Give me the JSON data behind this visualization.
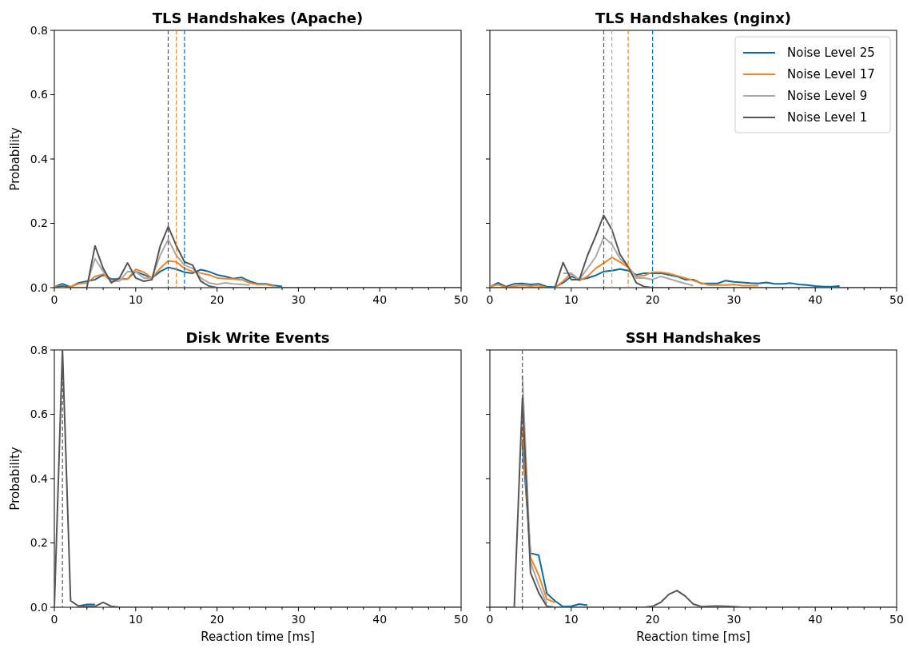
{
  "chart_data": [
    {
      "type": "line",
      "title": "TLS Handshakes (Apache)",
      "ylabel": "Probability",
      "x": [
        0,
        1,
        2,
        3,
        4,
        5,
        6,
        7,
        8,
        9,
        10,
        11,
        12,
        13,
        14,
        15,
        16,
        17,
        18,
        19,
        20,
        21,
        22,
        23,
        24,
        25,
        26,
        27,
        28,
        29,
        30,
        31,
        32,
        33,
        34,
        35,
        36,
        37,
        38,
        39,
        40,
        41,
        42,
        43,
        44,
        45,
        46,
        47,
        48,
        49,
        50
      ],
      "series": [
        {
          "color": "#0a6aa6",
          "values": [
            0.003,
            0.012,
            0.002,
            0.015,
            0.02,
            0.025,
            0.04,
            0.027,
            0.027,
            0.027,
            0.05,
            0.04,
            0.03,
            0.05,
            0.063,
            0.057,
            0.048,
            0.045,
            0.056,
            0.05,
            0.04,
            0.035,
            0.028,
            0.032,
            0.02,
            0.012,
            0.012,
            0.007,
            0.004,
            null,
            null,
            null,
            null,
            null,
            null,
            null,
            null,
            null,
            null,
            null,
            null,
            null,
            null,
            null,
            null,
            null,
            null,
            null,
            null,
            null,
            null
          ]
        },
        {
          "color": "#f58220",
          "values": [
            0.005,
            0.003,
            0.003,
            0.012,
            0.015,
            0.035,
            0.042,
            0.02,
            0.027,
            0.027,
            0.057,
            0.048,
            0.03,
            0.06,
            0.083,
            0.08,
            0.06,
            0.05,
            0.045,
            0.04,
            0.03,
            0.028,
            0.027,
            0.025,
            0.015,
            0.01,
            0.01,
            0.005,
            null,
            null,
            null,
            null,
            null,
            null,
            null,
            null,
            null,
            null,
            null,
            null,
            null,
            null,
            null,
            null,
            null,
            null,
            null,
            null,
            null,
            null,
            null
          ]
        },
        {
          "color": "#aaaaaa",
          "values": [
            null,
            null,
            null,
            null,
            0.01,
            0.09,
            0.05,
            0.02,
            0.02,
            0.05,
            0.05,
            0.03,
            0.03,
            0.1,
            0.15,
            0.1,
            0.07,
            0.06,
            0.03,
            0.015,
            0.01,
            0.015,
            0.012,
            0.01,
            0.008,
            null,
            null,
            null,
            null,
            null,
            null,
            null,
            null,
            null,
            null,
            null,
            null,
            null,
            null,
            null,
            null,
            null,
            null,
            null,
            null,
            null,
            null,
            null,
            null,
            null,
            null
          ]
        },
        {
          "color": "#555555",
          "values": [
            0,
            0.005,
            0,
            0,
            0,
            0.13,
            0.06,
            0.015,
            0.03,
            0.077,
            0.03,
            0.02,
            0.025,
            0.128,
            0.19,
            0.13,
            0.08,
            0.07,
            0.02,
            0.005,
            0,
            0,
            0,
            0,
            0,
            0,
            0,
            0,
            0,
            0,
            0,
            0,
            0,
            0,
            0,
            0,
            0,
            0,
            0,
            0,
            0,
            0,
            0,
            0,
            0,
            0,
            0,
            0,
            0,
            0,
            0
          ]
        }
      ],
      "xlim": [
        0,
        50
      ],
      "ylim": [
        0,
        0.8
      ],
      "xticks": [
        0,
        {
          "value": 2,
          "label": null
        },
        {
          "value": 4,
          "label": null
        },
        {
          "value": 6,
          "label": null
        },
        {
          "value": 8,
          "label": null
        },
        10,
        {
          "value": 12,
          "label": null
        },
        {
          "value": 14,
          "label": null
        },
        {
          "value": 16,
          "label": null
        },
        {
          "value": 18,
          "label": null
        },
        20,
        {
          "value": 22,
          "label": null
        },
        {
          "value": 24,
          "label": null
        },
        {
          "value": 26,
          "label": null
        },
        {
          "value": 28,
          "label": null
        },
        30,
        {
          "value": 32,
          "label": null
        },
        {
          "value": 34,
          "label": null
        },
        {
          "value": 36,
          "label": null
        },
        {
          "value": 38,
          "label": null
        },
        40,
        {
          "value": 42,
          "label": null
        },
        {
          "value": 44,
          "label": null
        },
        {
          "value": 46,
          "label": null
        },
        {
          "value": 48,
          "label": null
        },
        50
      ],
      "yticks": [
        {
          "value": 0,
          "label": "0.0"
        },
        0.2,
        0.4,
        0.6,
        0.8
      ],
      "ref_lines": [
        {
          "axis": "x",
          "value": 14,
          "color": "#555555",
          "line_style": "dashed"
        },
        {
          "axis": "x",
          "value": 15,
          "color": "#f58220",
          "line_style": "dashed"
        },
        {
          "axis": "x",
          "value": 16,
          "color": "#0a6aa6",
          "line_style": "dashed"
        }
      ]
    },
    {
      "type": "line",
      "title": "TLS Handshakes (nginx)",
      "x": [
        0,
        1,
        2,
        3,
        4,
        5,
        6,
        7,
        8,
        9,
        10,
        11,
        12,
        13,
        14,
        15,
        16,
        17,
        18,
        19,
        20,
        21,
        22,
        23,
        24,
        25,
        26,
        27,
        28,
        29,
        30,
        31,
        32,
        33,
        34,
        35,
        36,
        37,
        38,
        39,
        40,
        41,
        42,
        43,
        44,
        45,
        46,
        47,
        48,
        49,
        50
      ],
      "series": [
        {
          "name": "Noise Level 25",
          "color": "#0a6aa6",
          "values": [
            0.002,
            0.015,
            0.003,
            0.012,
            0.013,
            0.01,
            0.012,
            0.003,
            0.002,
            0.015,
            0.035,
            0.025,
            0.03,
            0.038,
            0.05,
            0.053,
            0.058,
            0.053,
            0.04,
            0.045,
            0.045,
            0.045,
            0.04,
            0.035,
            0.025,
            0.025,
            0.013,
            0.013,
            0.013,
            0.022,
            0.018,
            0.016,
            0.014,
            0.013,
            0.016,
            0.012,
            0.012,
            0.014,
            0.01,
            0.008,
            0.005,
            0.003,
            0.003,
            0.005,
            null,
            null,
            null,
            null,
            null,
            null,
            null
          ]
        },
        {
          "name": "Noise Level 17",
          "color": "#f58220",
          "values": [
            0.003,
            0.01,
            0,
            0.005,
            0.007,
            0.005,
            0.007,
            0,
            0,
            0.02,
            0.045,
            0.022,
            0.035,
            0.06,
            0.076,
            0.094,
            0.08,
            0.063,
            0.035,
            0.038,
            0.048,
            0.048,
            0.044,
            0.037,
            0.03,
            0.022,
            0.014,
            0.008,
            0.008,
            0.008,
            0.01,
            0.006,
            0.006,
            0.006,
            null,
            null,
            null,
            null,
            null,
            null,
            null,
            null,
            null,
            null,
            null,
            null,
            null,
            null,
            null,
            null,
            null
          ]
        },
        {
          "name": "Noise Level 9",
          "color": "#aaaaaa",
          "values": [
            null,
            null,
            null,
            null,
            null,
            null,
            null,
            null,
            null,
            0.045,
            0.045,
            0.025,
            0.06,
            0.095,
            0.157,
            0.135,
            0.09,
            0.065,
            0.03,
            0.03,
            0.025,
            0.035,
            0.028,
            0.02,
            0.013,
            0.006,
            null,
            null,
            null,
            null,
            null,
            null,
            null,
            null,
            null,
            null,
            null,
            null,
            null,
            null,
            null,
            null,
            null,
            null,
            null,
            null,
            null,
            null,
            null,
            null,
            null
          ]
        },
        {
          "name": "Noise Level 1",
          "color": "#555555",
          "values": [
            0,
            0,
            0,
            0,
            0,
            0,
            0,
            0,
            0,
            0.078,
            0.025,
            0.025,
            0.1,
            0.16,
            0.225,
            0.18,
            0.103,
            0.065,
            0.015,
            0.003,
            0,
            0,
            0,
            0,
            0,
            0,
            0,
            0,
            0,
            0,
            0,
            0,
            0,
            0,
            0,
            0,
            0,
            0,
            0,
            0,
            0,
            0,
            0,
            0,
            0,
            0,
            0,
            0,
            0,
            0,
            0
          ]
        }
      ],
      "xlim": [
        0,
        50
      ],
      "ylim": [
        0,
        0.8
      ],
      "xticks": [
        0,
        {
          "value": 2,
          "label": null
        },
        {
          "value": 4,
          "label": null
        },
        {
          "value": 6,
          "label": null
        },
        {
          "value": 8,
          "label": null
        },
        10,
        {
          "value": 12,
          "label": null
        },
        {
          "value": 14,
          "label": null
        },
        {
          "value": 16,
          "label": null
        },
        {
          "value": 18,
          "label": null
        },
        20,
        {
          "value": 22,
          "label": null
        },
        {
          "value": 24,
          "label": null
        },
        {
          "value": 26,
          "label": null
        },
        {
          "value": 28,
          "label": null
        },
        30,
        {
          "value": 32,
          "label": null
        },
        {
          "value": 34,
          "label": null
        },
        {
          "value": 36,
          "label": null
        },
        {
          "value": 38,
          "label": null
        },
        40,
        {
          "value": 42,
          "label": null
        },
        {
          "value": 44,
          "label": null
        },
        {
          "value": 46,
          "label": null
        },
        {
          "value": 48,
          "label": null
        },
        50
      ],
      "yticks": [
        0,
        0.2,
        0.4,
        0.6,
        0.8
      ],
      "tick_labels": "x",
      "legend": "top right",
      "ref_lines": [
        {
          "axis": "x",
          "value": 14,
          "color": "#555555",
          "line_style": "dashed"
        },
        {
          "axis": "x",
          "value": 15,
          "color": "#aaaaaa",
          "line_style": "dashed"
        },
        {
          "axis": "x",
          "value": 17,
          "color": "#f58220",
          "line_style": "dashed"
        },
        {
          "axis": "x",
          "value": 20,
          "color": "#0a6aa6",
          "line_style": "dashed"
        }
      ]
    },
    {
      "type": "line",
      "title": "Disk Write Events",
      "xlabel": "Reaction time [ms]",
      "ylabel": "Probability",
      "x": [
        0,
        1,
        2,
        3,
        4,
        5,
        6,
        7,
        8,
        9,
        10,
        11,
        12,
        13,
        14,
        15,
        16,
        17,
        18,
        19,
        20,
        21,
        22,
        23,
        24,
        25,
        26,
        27,
        28,
        29,
        30,
        31,
        32,
        33,
        34,
        35,
        36,
        37,
        38,
        39,
        40,
        41,
        42,
        43,
        44,
        45,
        46,
        47,
        48,
        49,
        50
      ],
      "series": [
        {
          "color": "#0a6aa6",
          "values": [
            null,
            null,
            null,
            0.004,
            0.009,
            0.009,
            null,
            null,
            null,
            null,
            null,
            null,
            null,
            null,
            null,
            null,
            null,
            null,
            null,
            null,
            null,
            null,
            null,
            null,
            null,
            null,
            null,
            null,
            null,
            null,
            null,
            null,
            null,
            null,
            null,
            null,
            null,
            null,
            null,
            null,
            null,
            null,
            null,
            null,
            null,
            null,
            null,
            null,
            null,
            null,
            null
          ]
        },
        {
          "color": "#555555",
          "values": [
            0,
            0.8,
            0.02,
            0.003,
            0.003,
            0.003,
            0.015,
            0.003,
            0,
            0,
            0,
            0,
            0,
            0,
            0,
            0,
            0,
            0,
            0,
            0,
            0,
            0,
            0,
            0,
            0,
            0,
            0,
            0,
            0,
            0,
            0,
            0,
            0,
            0,
            0,
            0,
            0,
            0,
            0,
            0,
            0,
            0,
            0,
            0,
            0,
            0,
            0,
            0,
            0,
            0,
            0
          ]
        }
      ],
      "xlim": [
        0,
        50
      ],
      "ylim": [
        0,
        0.8
      ],
      "xticks": [
        0,
        {
          "value": 2,
          "label": null
        },
        {
          "value": 4,
          "label": null
        },
        {
          "value": 6,
          "label": null
        },
        {
          "value": 8,
          "label": null
        },
        10,
        {
          "value": 12,
          "label": null
        },
        {
          "value": 14,
          "label": null
        },
        {
          "value": 16,
          "label": null
        },
        {
          "value": 18,
          "label": null
        },
        20,
        {
          "value": 22,
          "label": null
        },
        {
          "value": 24,
          "label": null
        },
        {
          "value": 26,
          "label": null
        },
        {
          "value": 28,
          "label": null
        },
        30,
        {
          "value": 32,
          "label": null
        },
        {
          "value": 34,
          "label": null
        },
        {
          "value": 36,
          "label": null
        },
        {
          "value": 38,
          "label": null
        },
        40,
        {
          "value": 42,
          "label": null
        },
        {
          "value": 44,
          "label": null
        },
        {
          "value": 46,
          "label": null
        },
        {
          "value": 48,
          "label": null
        },
        50
      ],
      "yticks": [
        {
          "value": 0,
          "label": "0.0"
        },
        0.2,
        0.4,
        0.6,
        0.8
      ],
      "ref_lines": [
        {
          "axis": "x",
          "value": 1,
          "color": "#555555",
          "line_style": "dashed"
        }
      ]
    },
    {
      "type": "line",
      "title": "SSH Handshakes",
      "xlabel": "Reaction time [ms]",
      "x": [
        0,
        1,
        2,
        3,
        4,
        5,
        6,
        7,
        8,
        9,
        10,
        11,
        12,
        13,
        14,
        15,
        16,
        17,
        18,
        19,
        20,
        21,
        22,
        23,
        24,
        25,
        26,
        27,
        28,
        29,
        30,
        31,
        32,
        33,
        34,
        35,
        36,
        37,
        38,
        39,
        40,
        41,
        42,
        43,
        44,
        45,
        46,
        47,
        48,
        49,
        50
      ],
      "series": [
        {
          "color": "#0a6aa6",
          "values": [
            null,
            null,
            null,
            null,
            0.51,
            0.168,
            0.162,
            0.043,
            0.02,
            0.002,
            0.003,
            0.01,
            0.006,
            null,
            null,
            null,
            null,
            null,
            null,
            null,
            null,
            null,
            null,
            null,
            null,
            null,
            null,
            null,
            null,
            null,
            null,
            null,
            null,
            null,
            null,
            null,
            null,
            null,
            null,
            null,
            null,
            null,
            null,
            null,
            null,
            null,
            null,
            null,
            null,
            null,
            null
          ]
        },
        {
          "color": "#f58220",
          "values": [
            null,
            null,
            null,
            null,
            0.56,
            0.155,
            0.1,
            0.025,
            0.015,
            null,
            null,
            null,
            null,
            null,
            null,
            null,
            null,
            null,
            null,
            null,
            null,
            null,
            null,
            null,
            null,
            null,
            null,
            null,
            null,
            null,
            null,
            null,
            null,
            null,
            null,
            null,
            null,
            null,
            null,
            null,
            null,
            null,
            null,
            null,
            null,
            null,
            null,
            null,
            null,
            null,
            null
          ]
        },
        {
          "color": "#aaaaaa",
          "values": [
            null,
            null,
            null,
            null,
            0.72,
            0.14,
            0.07,
            0.01,
            null,
            null,
            null,
            null,
            null,
            null,
            null,
            null,
            null,
            null,
            null,
            null,
            null,
            null,
            null,
            null,
            null,
            null,
            null,
            null,
            null,
            null,
            null,
            null,
            null,
            null,
            null,
            null,
            null,
            null,
            null,
            null,
            null,
            null,
            null,
            null,
            null,
            null,
            null,
            null,
            null,
            null,
            null
          ]
        },
        {
          "color": "#555555",
          "values": [
            0,
            0,
            0,
            0,
            0.65,
            0.107,
            0.045,
            0.003,
            0,
            0,
            0,
            0,
            0,
            0,
            0,
            0,
            0,
            0,
            0,
            0,
            0.003,
            0.015,
            0.04,
            0.052,
            0.035,
            0.01,
            0.002,
            0.003,
            0.004,
            0.003,
            0.002,
            0,
            0,
            0,
            0,
            0,
            0,
            0,
            0,
            0,
            0,
            0,
            0,
            0,
            0,
            0,
            0,
            0,
            0,
            0,
            0
          ]
        }
      ],
      "xlim": [
        0,
        50
      ],
      "ylim": [
        0,
        0.8
      ],
      "xticks": [
        0,
        {
          "value": 2,
          "label": null
        },
        {
          "value": 4,
          "label": null
        },
        {
          "value": 6,
          "label": null
        },
        {
          "value": 8,
          "label": null
        },
        10,
        {
          "value": 12,
          "label": null
        },
        {
          "value": 14,
          "label": null
        },
        {
          "value": 16,
          "label": null
        },
        {
          "value": 18,
          "label": null
        },
        20,
        {
          "value": 22,
          "label": null
        },
        {
          "value": 24,
          "label": null
        },
        {
          "value": 26,
          "label": null
        },
        {
          "value": 28,
          "label": null
        },
        30,
        {
          "value": 32,
          "label": null
        },
        {
          "value": 34,
          "label": null
        },
        {
          "value": 36,
          "label": null
        },
        {
          "value": 38,
          "label": null
        },
        40,
        {
          "value": 42,
          "label": null
        },
        {
          "value": 44,
          "label": null
        },
        {
          "value": 46,
          "label": null
        },
        {
          "value": 48,
          "label": null
        },
        50
      ],
      "yticks": [
        0,
        0.2,
        0.4,
        0.6,
        0.8
      ],
      "tick_labels": "x",
      "ref_lines": [
        {
          "axis": "x",
          "value": 4,
          "color": "#555555",
          "line_style": "dashed"
        }
      ]
    }
  ]
}
